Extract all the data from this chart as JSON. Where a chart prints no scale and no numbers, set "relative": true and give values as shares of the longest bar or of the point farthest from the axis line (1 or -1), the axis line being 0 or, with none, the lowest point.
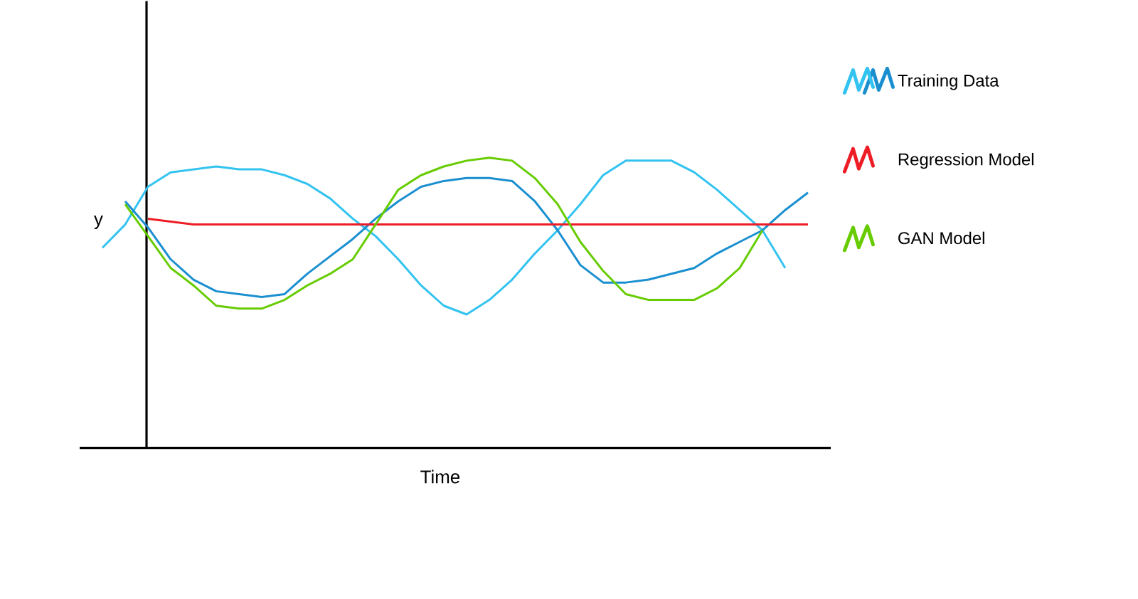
{
  "chart_data": {
    "type": "line",
    "relative": true,
    "xlabel": "Time",
    "ylabel": "y",
    "legend": "right",
    "line_style": "solid",
    "categories": [
      null,
      null,
      null,
      null,
      null,
      null,
      null,
      null,
      null,
      null,
      null,
      null,
      null,
      null,
      null,
      null,
      null,
      null,
      null,
      null,
      null,
      null,
      null,
      null,
      null,
      null,
      null,
      null,
      null,
      null,
      null,
      null
    ],
    "series": [
      {
        "name": "Training Data",
        "color": "#33c3f0",
        "values": [
          0.69,
          0.77,
          0.9,
          0.95,
          0.96,
          0.97,
          0.96,
          0.96,
          0.94,
          0.91,
          0.86,
          0.79,
          0.73,
          0.65,
          0.56,
          0.49,
          0.46,
          0.51,
          0.58,
          0.67,
          0.75,
          0.84,
          0.94,
          0.99,
          0.99,
          0.99,
          0.95,
          0.89,
          0.82,
          0.75,
          0.62,
          null
        ]
      },
      {
        "color": "#1a8fd0",
        "values": [
          null,
          0.85,
          0.76,
          0.65,
          0.58,
          0.54,
          0.53,
          0.52,
          0.53,
          0.6,
          0.66,
          0.72,
          0.79,
          0.85,
          0.9,
          0.92,
          0.93,
          0.93,
          0.92,
          0.85,
          0.75,
          0.63,
          0.57,
          0.57,
          0.58,
          0.6,
          0.62,
          0.67,
          0.71,
          0.75,
          0.82,
          0.88
        ]
      },
      {
        "name": "Regression Model",
        "color": "#ee1c24",
        "values": [
          null,
          null,
          0.79,
          0.78,
          0.77,
          0.77,
          0.77,
          0.77,
          0.77,
          0.77,
          0.77,
          0.77,
          0.77,
          0.77,
          0.77,
          0.77,
          0.77,
          0.77,
          0.77,
          0.77,
          0.77,
          0.77,
          0.77,
          0.77,
          0.77,
          0.77,
          0.77,
          0.77,
          0.77,
          0.77,
          0.77,
          0.77
        ]
      },
      {
        "name": "GAN Model",
        "color": "#66cc00",
        "values": [
          null,
          0.84,
          0.73,
          0.62,
          0.56,
          0.49,
          0.48,
          0.48,
          0.51,
          0.56,
          0.6,
          0.65,
          0.77,
          0.89,
          0.94,
          0.97,
          0.99,
          1,
          0.99,
          0.93,
          0.84,
          0.71,
          0.61,
          0.53,
          0.51,
          0.51,
          0.51,
          0.55,
          0.62,
          0.75,
          null,
          null
        ]
      }
    ]
  }
}
